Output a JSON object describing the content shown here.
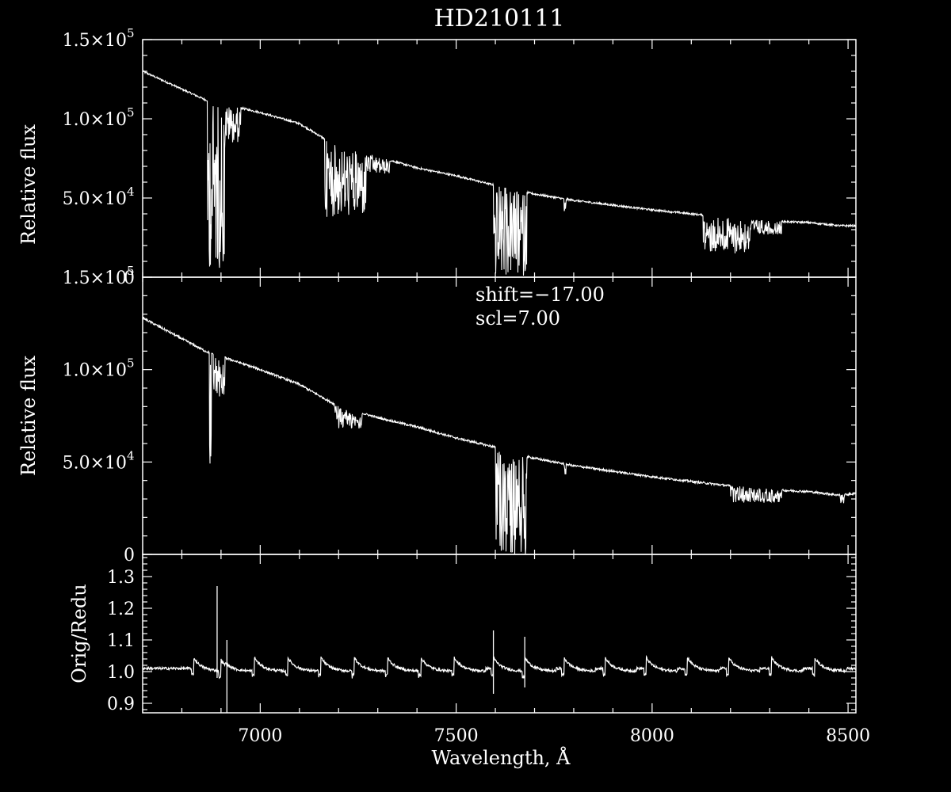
{
  "title": "HD210111",
  "colors": {
    "background": "#000000",
    "foreground": "#ffffff"
  },
  "chart_data": [
    {
      "type": "line",
      "panel": "top",
      "ylabel": "Relative flux",
      "xlim": [
        6700,
        8520
      ],
      "ylim": [
        0,
        150000
      ],
      "yticks": [
        {
          "value": 0,
          "label": "0"
        },
        {
          "value": 50000,
          "label": "5.0×10",
          "exp": "4"
        },
        {
          "value": 100000,
          "label": "1.0×10",
          "exp": "5"
        },
        {
          "value": 150000,
          "label": "1.5×10",
          "exp": "5"
        }
      ],
      "continuum": [
        [
          6700,
          130000
        ],
        [
          6860,
          112000
        ],
        [
          7000,
          104000
        ],
        [
          7100,
          97000
        ],
        [
          7200,
          82000
        ],
        [
          7300,
          76000
        ],
        [
          7400,
          69000
        ],
        [
          7500,
          64000
        ],
        [
          7600,
          58000
        ],
        [
          7650,
          55000
        ],
        [
          7700,
          52500
        ],
        [
          7800,
          48500
        ],
        [
          7900,
          45500
        ],
        [
          8000,
          42500
        ],
        [
          8100,
          40000
        ],
        [
          8200,
          37500
        ],
        [
          8300,
          35500
        ],
        [
          8400,
          34500
        ],
        [
          8480,
          32500
        ],
        [
          8520,
          32500
        ]
      ],
      "absorption_bands": [
        {
          "start": 6865,
          "end": 6910,
          "min": 5000
        },
        {
          "start": 6910,
          "end": 6950,
          "min": 85000
        },
        {
          "start": 7165,
          "end": 7270,
          "min": 38000
        },
        {
          "start": 7270,
          "end": 7330,
          "min": 65000
        },
        {
          "start": 7595,
          "end": 7680,
          "min": 0
        },
        {
          "start": 7775,
          "end": 7780,
          "min": 41000
        },
        {
          "start": 8130,
          "end": 8250,
          "min": 15000
        },
        {
          "start": 8250,
          "end": 8330,
          "min": 27000
        }
      ]
    },
    {
      "type": "line",
      "panel": "middle",
      "ylabel": "Relative flux",
      "annotations": [
        "shift=−17.00",
        "scl=7.00"
      ],
      "xlim": [
        6700,
        8520
      ],
      "ylim": [
        0,
        150000
      ],
      "yticks": [
        {
          "value": 0,
          "label": "0"
        },
        {
          "value": 50000,
          "label": "5.0×10",
          "exp": "4"
        },
        {
          "value": 100000,
          "label": "1.0×10",
          "exp": "5"
        },
        {
          "value": 150000,
          "label": "1.5×10",
          "exp": "5"
        }
      ],
      "continuum": [
        [
          6700,
          128000
        ],
        [
          6860,
          110000
        ],
        [
          7000,
          100000
        ],
        [
          7100,
          92000
        ],
        [
          7200,
          80000
        ],
        [
          7300,
          74000
        ],
        [
          7400,
          69000
        ],
        [
          7500,
          63000
        ],
        [
          7600,
          58000
        ],
        [
          7650,
          54000
        ],
        [
          7700,
          52000
        ],
        [
          7800,
          48000
        ],
        [
          7900,
          45000
        ],
        [
          8000,
          42000
        ],
        [
          8100,
          39500
        ],
        [
          8200,
          37000
        ],
        [
          8300,
          35000
        ],
        [
          8400,
          34000
        ],
        [
          8480,
          32000
        ],
        [
          8520,
          33000
        ]
      ],
      "absorption_bands": [
        {
          "start": 6870,
          "end": 6875,
          "min": 40000
        },
        {
          "start": 6880,
          "end": 6910,
          "min": 85000
        },
        {
          "start": 7190,
          "end": 7260,
          "min": 68000
        },
        {
          "start": 7600,
          "end": 7680,
          "min": 0
        },
        {
          "start": 7775,
          "end": 7780,
          "min": 42000
        },
        {
          "start": 8200,
          "end": 8330,
          "min": 28000
        },
        {
          "start": 8480,
          "end": 8490,
          "min": 27000
        }
      ]
    },
    {
      "type": "line",
      "panel": "bottom",
      "ylabel": "Orig/Redu",
      "xlabel": "Wavelength, Å",
      "xlim": [
        6700,
        8520
      ],
      "ylim": [
        0.87,
        1.37
      ],
      "yticks": [
        {
          "value": 0.9,
          "label": "0.9"
        },
        {
          "value": 1.0,
          "label": "1.0"
        },
        {
          "value": 1.1,
          "label": "1.1"
        },
        {
          "value": 1.2,
          "label": "1.2"
        },
        {
          "value": 1.3,
          "label": "1.3"
        }
      ],
      "xticks": [
        {
          "value": 7000,
          "label": "7000"
        },
        {
          "value": 7500,
          "label": "7500"
        },
        {
          "value": 8000,
          "label": "8000"
        },
        {
          "value": 8500,
          "label": "8500"
        }
      ],
      "baseline": 1.01,
      "bumps": [
        6830,
        6900,
        6985,
        7070,
        7155,
        7240,
        7325,
        7410,
        7495,
        7595,
        7675,
        7775,
        7880,
        7985,
        8090,
        8195,
        8305,
        8415
      ],
      "spikes": [
        {
          "x": 6890,
          "high": 1.27,
          "low": 0.98
        },
        {
          "x": 6915,
          "high": 1.1,
          "low": 0.87
        },
        {
          "x": 7595,
          "high": 1.13,
          "low": 0.93
        },
        {
          "x": 7675,
          "high": 1.11,
          "low": 0.95
        }
      ]
    }
  ]
}
